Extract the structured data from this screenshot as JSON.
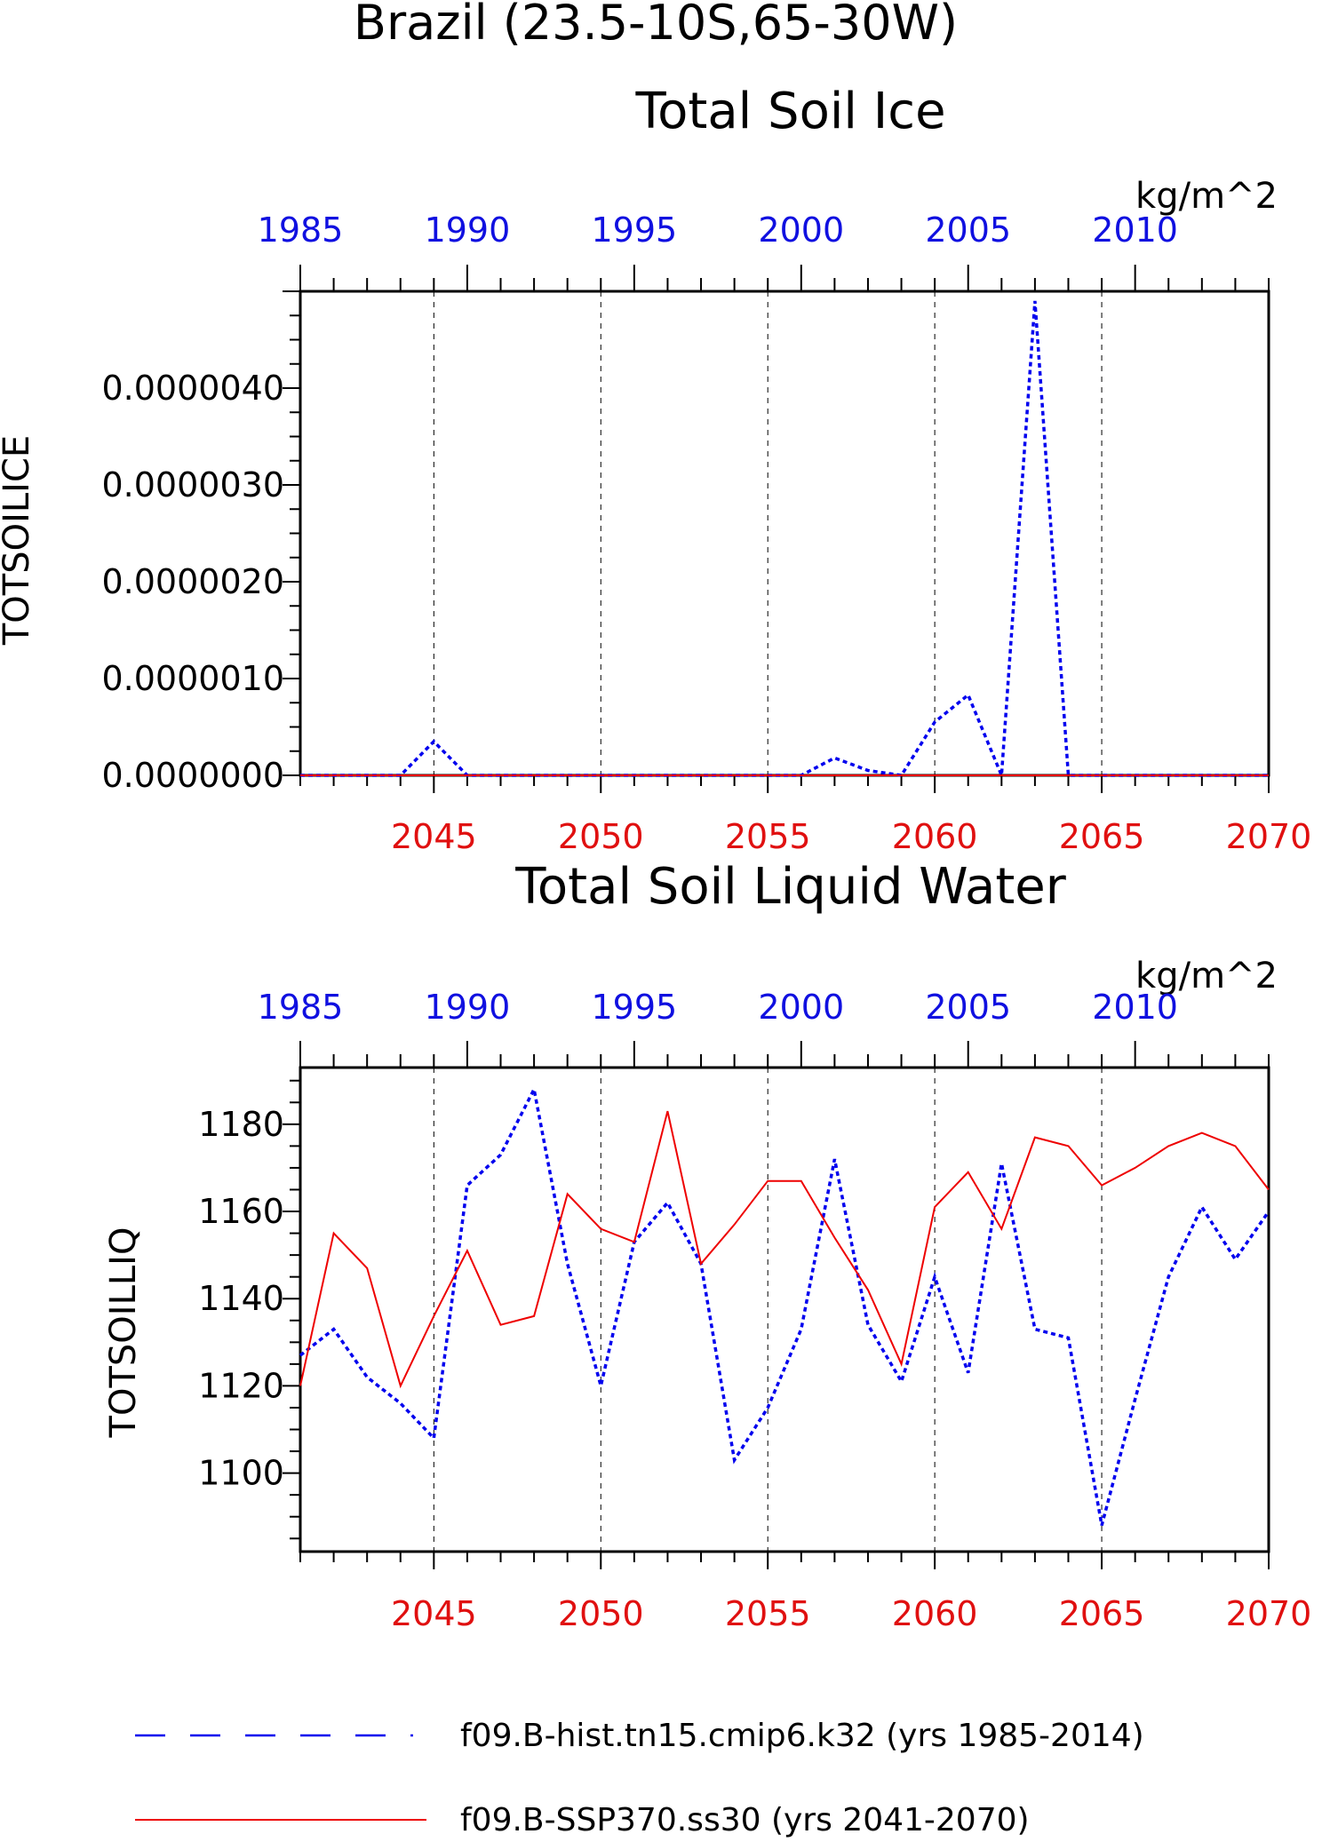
{
  "header": {
    "region_title": "Brazil (23.5-10S,65-30W)"
  },
  "legend": {
    "hist_label": "f09.B-hist.tn15.cmip6.k32 (yrs 1985-2014)",
    "ssp_label": "f09.B-SSP370.ss30 (yrs 2041-2070)",
    "hist_color": "#0000ee",
    "ssp_color": "#ee0000"
  },
  "chart_data": [
    {
      "type": "line",
      "title": "Total Soil Ice",
      "ylabel": "TOTSOILICE",
      "units": "kg/m^2",
      "x_bottom_ticks": [
        "2045",
        "2050",
        "2055",
        "2060",
        "2065",
        "2070"
      ],
      "x_top_ticks": [
        "1985",
        "1990",
        "1995",
        "2000",
        "2005",
        "2010"
      ],
      "y_ticks": [
        "0.0000000",
        "0.0000010",
        "0.0000020",
        "0.0000030",
        "0.0000040"
      ],
      "ylim": [
        0,
        5e-06
      ],
      "grid": "vertical dashed",
      "series": [
        {
          "name": "f09.B-hist.tn15.cmip6.k32 (yrs 1985-2014)",
          "x": [
            1985,
            1986,
            1987,
            1988,
            1989,
            1990,
            1991,
            1992,
            1993,
            1994,
            1995,
            1996,
            1997,
            1998,
            1999,
            2000,
            2001,
            2002,
            2003,
            2004,
            2005,
            2006,
            2007,
            2008,
            2009,
            2010,
            2011,
            2012,
            2013,
            2014
          ],
          "values": [
            0,
            0,
            0,
            0,
            3.5e-07,
            0,
            0,
            0,
            0,
            0,
            0,
            0,
            0,
            0,
            0,
            0,
            1.8e-07,
            5e-08,
            0,
            5.5e-07,
            8.3e-07,
            0,
            4.9e-06,
            0,
            0,
            0,
            0,
            0,
            0,
            0
          ]
        },
        {
          "name": "f09.B-SSP370.ss30 (yrs 2041-2070)",
          "x": [
            2041,
            2042,
            2043,
            2044,
            2045,
            2046,
            2047,
            2048,
            2049,
            2050,
            2051,
            2052,
            2053,
            2054,
            2055,
            2056,
            2057,
            2058,
            2059,
            2060,
            2061,
            2062,
            2063,
            2064,
            2065,
            2066,
            2067,
            2068,
            2069,
            2070
          ],
          "values": [
            0,
            0,
            0,
            0,
            0,
            0,
            0,
            0,
            0,
            0,
            0,
            0,
            0,
            0,
            0,
            0,
            0,
            0,
            0,
            0,
            0,
            0,
            0,
            0,
            0,
            0,
            0,
            0,
            0,
            0
          ]
        }
      ]
    },
    {
      "type": "line",
      "title": "Total Soil Liquid Water",
      "ylabel": "TOTSOILLIQ",
      "units": "kg/m^2",
      "x_bottom_ticks": [
        "2045",
        "2050",
        "2055",
        "2060",
        "2065",
        "2070"
      ],
      "x_top_ticks": [
        "1985",
        "1990",
        "1995",
        "2000",
        "2005",
        "2010"
      ],
      "y_ticks": [
        "1100",
        "1120",
        "1140",
        "1160",
        "1180"
      ],
      "ylim": [
        1082,
        1193
      ],
      "grid": "vertical dashed",
      "series": [
        {
          "name": "f09.B-hist.tn15.cmip6.k32 (yrs 1985-2014)",
          "x": [
            1985,
            1986,
            1987,
            1988,
            1989,
            1990,
            1991,
            1992,
            1993,
            1994,
            1995,
            1996,
            1997,
            1998,
            1999,
            2000,
            2001,
            2002,
            2003,
            2004,
            2005,
            2006,
            2007,
            2008,
            2009,
            2010,
            2011,
            2012,
            2013,
            2014
          ],
          "values": [
            1127,
            1133,
            1122,
            1116,
            1108,
            1166,
            1173,
            1188,
            1148,
            1120,
            1153,
            1162,
            1148,
            1103,
            1115,
            1133,
            1172,
            1134,
            1121,
            1145,
            1123,
            1171,
            1133,
            1131,
            1088,
            1117,
            1145,
            1161,
            1149,
            1160
          ]
        },
        {
          "name": "f09.B-SSP370.ss30 (yrs 2041-2070)",
          "x": [
            2041,
            2042,
            2043,
            2044,
            2045,
            2046,
            2047,
            2048,
            2049,
            2050,
            2051,
            2052,
            2053,
            2054,
            2055,
            2056,
            2057,
            2058,
            2059,
            2060,
            2061,
            2062,
            2063,
            2064,
            2065,
            2066,
            2067,
            2068,
            2069,
            2070
          ],
          "values": [
            1120,
            1155,
            1147,
            1120,
            1136,
            1151,
            1134,
            1136,
            1164,
            1156,
            1153,
            1183,
            1148,
            1157,
            1167,
            1167,
            1154,
            1142,
            1125,
            1161,
            1169,
            1156,
            1177,
            1175,
            1166,
            1170,
            1175,
            1178,
            1175,
            1165
          ]
        }
      ]
    }
  ]
}
